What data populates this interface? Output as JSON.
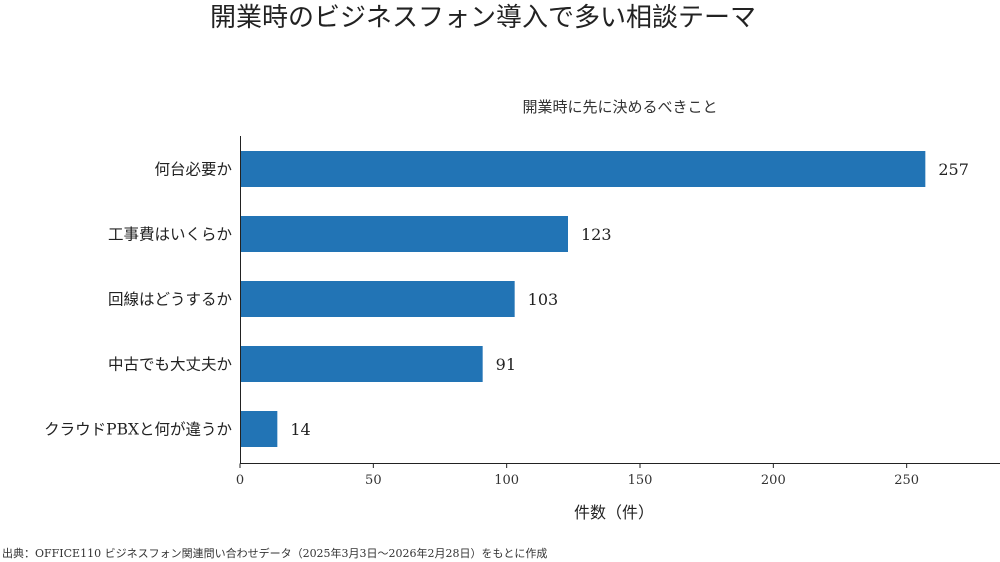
{
  "chart_data": {
    "type": "bar",
    "orientation": "horizontal",
    "title": "開業時のビジネスフォン導入で多い相談テーマ",
    "subtitle": "開業時に先に決めるべきこと",
    "xlabel": "件数（件）",
    "ylabel": "",
    "categories": [
      "何台必要か",
      "工事費はいくらか",
      "回線はどうするか",
      "中古でも大丈夫か",
      "クラウドPBXと何が違うか"
    ],
    "values": [
      257,
      123,
      103,
      91,
      14
    ],
    "xlim": [
      0,
      285
    ],
    "xticks": [
      0,
      50,
      100,
      150,
      200,
      250
    ],
    "grid": false,
    "legend": "none",
    "bar_color": "#2274b5",
    "source": "出典：OFFICE110 ビジネスフォン関連問い合わせデータ（2025年3月3日〜2026年2月28日）をもとに作成"
  }
}
